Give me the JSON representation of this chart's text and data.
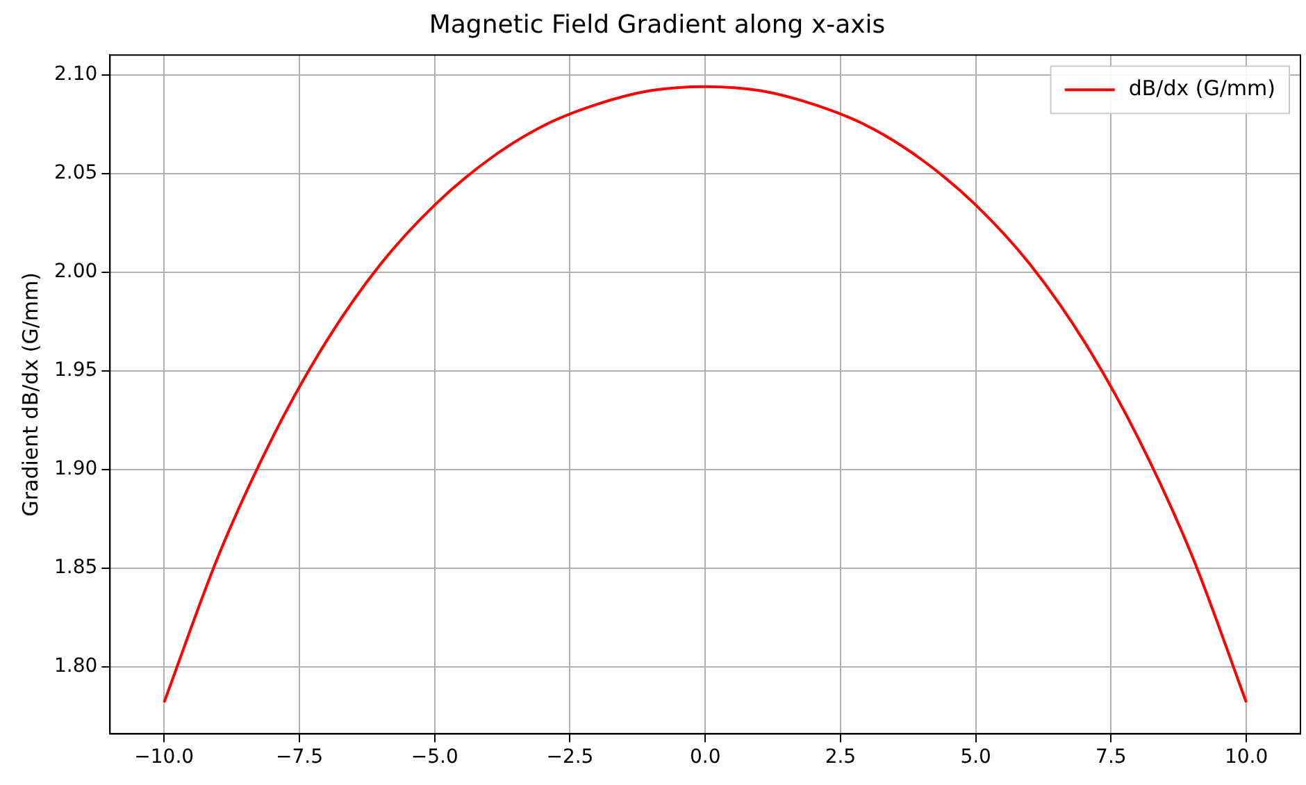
{
  "chart_data": {
    "type": "line",
    "title": "Magnetic Field Gradient along x-axis",
    "ylabel": "Gradient dB/dx (G/mm)",
    "x": [
      -10,
      -9,
      -8,
      -7,
      -6,
      -5,
      -4,
      -3,
      -2,
      -1,
      0,
      1,
      2,
      3,
      4,
      5,
      6,
      7,
      8,
      9,
      10
    ],
    "series": [
      {
        "name": "dB/dx (G/mm)",
        "color": "#ff0000",
        "values": [
          1.782,
          1.856,
          1.916,
          1.965,
          2.004,
          2.034,
          2.057,
          2.074,
          2.085,
          2.092,
          2.094,
          2.092,
          2.085,
          2.074,
          2.057,
          2.034,
          2.004,
          1.965,
          1.916,
          1.856,
          1.782
        ]
      }
    ],
    "xlim": [
      -11,
      11
    ],
    "xticks": [
      {
        "value": -10,
        "label": "−10.0"
      },
      {
        "value": -7.5,
        "label": "−7.5"
      },
      {
        "value": -5,
        "label": "−5.0"
      },
      {
        "value": -2.5,
        "label": "−2.5"
      },
      {
        "value": 0,
        "label": "0.0"
      },
      {
        "value": 2.5,
        "label": "2.5"
      },
      {
        "value": 5,
        "label": "5.0"
      },
      {
        "value": 7.5,
        "label": "7.5"
      },
      {
        "value": 10,
        "label": "10.0"
      }
    ],
    "ylim": [
      1.766,
      2.11
    ],
    "yticks": [
      {
        "value": 1.8,
        "label": "1.80"
      },
      {
        "value": 1.85,
        "label": "1.85"
      },
      {
        "value": 1.9,
        "label": "1.90"
      },
      {
        "value": 1.95,
        "label": "1.95"
      },
      {
        "value": 2.0,
        "label": "2.00"
      },
      {
        "value": 2.05,
        "label": "2.05"
      },
      {
        "value": 2.1,
        "label": "2.10"
      }
    ],
    "grid": true,
    "legend": "top right",
    "line_style": "solid",
    "marker": "none"
  }
}
